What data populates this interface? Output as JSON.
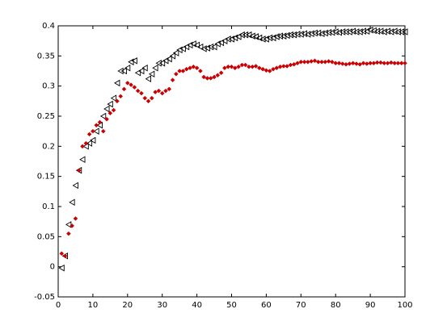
{
  "chart_data": {
    "type": "scatter",
    "x": [
      1,
      2,
      3,
      4,
      5,
      6,
      7,
      8,
      9,
      10,
      11,
      12,
      13,
      14,
      15,
      16,
      17,
      18,
      19,
      20,
      21,
      22,
      23,
      24,
      25,
      26,
      27,
      28,
      29,
      30,
      31,
      32,
      33,
      34,
      35,
      36,
      37,
      38,
      39,
      40,
      41,
      42,
      43,
      44,
      45,
      46,
      47,
      48,
      49,
      50,
      51,
      52,
      53,
      54,
      55,
      56,
      57,
      58,
      59,
      60,
      61,
      62,
      63,
      64,
      65,
      66,
      67,
      68,
      69,
      70,
      71,
      72,
      73,
      74,
      75,
      76,
      77,
      78,
      79,
      80,
      81,
      82,
      83,
      84,
      85,
      86,
      87,
      88,
      89,
      90,
      91,
      92,
      93,
      94,
      95,
      96,
      97,
      98,
      99,
      100
    ],
    "series": [
      {
        "color": "#000000",
        "marker": "triangle-left",
        "values": [
          -0.002,
          0.018,
          0.07,
          0.107,
          0.135,
          0.16,
          0.178,
          0.2,
          0.205,
          0.21,
          0.225,
          0.235,
          0.25,
          0.262,
          0.27,
          0.28,
          0.305,
          0.325,
          0.325,
          0.33,
          0.34,
          0.342,
          0.322,
          0.325,
          0.33,
          0.312,
          0.32,
          0.33,
          0.338,
          0.338,
          0.342,
          0.345,
          0.35,
          0.355,
          0.36,
          0.362,
          0.365,
          0.368,
          0.37,
          0.368,
          0.365,
          0.362,
          0.363,
          0.365,
          0.365,
          0.37,
          0.372,
          0.375,
          0.378,
          0.378,
          0.38,
          0.382,
          0.385,
          0.385,
          0.385,
          0.383,
          0.382,
          0.38,
          0.378,
          0.378,
          0.38,
          0.38,
          0.382,
          0.383,
          0.383,
          0.384,
          0.385,
          0.385,
          0.386,
          0.386,
          0.387,
          0.386,
          0.387,
          0.388,
          0.388,
          0.387,
          0.388,
          0.389,
          0.389,
          0.39,
          0.389,
          0.39,
          0.39,
          0.39,
          0.391,
          0.39,
          0.39,
          0.391,
          0.391,
          0.393,
          0.392,
          0.391,
          0.391,
          0.39,
          0.391,
          0.39,
          0.391,
          0.39,
          0.39,
          0.39
        ]
      },
      {
        "color": "#cc0000",
        "marker": "diamond",
        "values": [
          0.022,
          0.018,
          0.055,
          0.068,
          0.08,
          0.16,
          0.2,
          0.205,
          0.22,
          0.225,
          0.235,
          0.24,
          0.225,
          0.245,
          0.255,
          0.26,
          0.275,
          0.283,
          0.295,
          0.305,
          0.302,
          0.298,
          0.292,
          0.288,
          0.28,
          0.275,
          0.28,
          0.29,
          0.292,
          0.288,
          0.292,
          0.295,
          0.31,
          0.32,
          0.325,
          0.325,
          0.328,
          0.33,
          0.332,
          0.33,
          0.325,
          0.315,
          0.313,
          0.313,
          0.315,
          0.318,
          0.322,
          0.33,
          0.332,
          0.332,
          0.33,
          0.332,
          0.335,
          0.335,
          0.332,
          0.332,
          0.333,
          0.33,
          0.328,
          0.326,
          0.325,
          0.328,
          0.33,
          0.332,
          0.333,
          0.333,
          0.335,
          0.336,
          0.338,
          0.34,
          0.34,
          0.34,
          0.341,
          0.342,
          0.34,
          0.34,
          0.34,
          0.341,
          0.34,
          0.338,
          0.338,
          0.337,
          0.336,
          0.337,
          0.338,
          0.337,
          0.336,
          0.338,
          0.337,
          0.338,
          0.338,
          0.339,
          0.339,
          0.338,
          0.338,
          0.339,
          0.338,
          0.338,
          0.338,
          0.338
        ]
      }
    ],
    "xlim": [
      0,
      100
    ],
    "xticks": [
      0,
      10,
      20,
      30,
      40,
      50,
      60,
      70,
      80,
      90,
      100
    ],
    "ylim": [
      -0.05,
      0.4
    ],
    "yticks": [
      -0.05,
      0,
      0.05,
      0.1,
      0.15,
      0.2,
      0.25,
      0.3,
      0.35,
      0.4
    ],
    "grid": false
  }
}
